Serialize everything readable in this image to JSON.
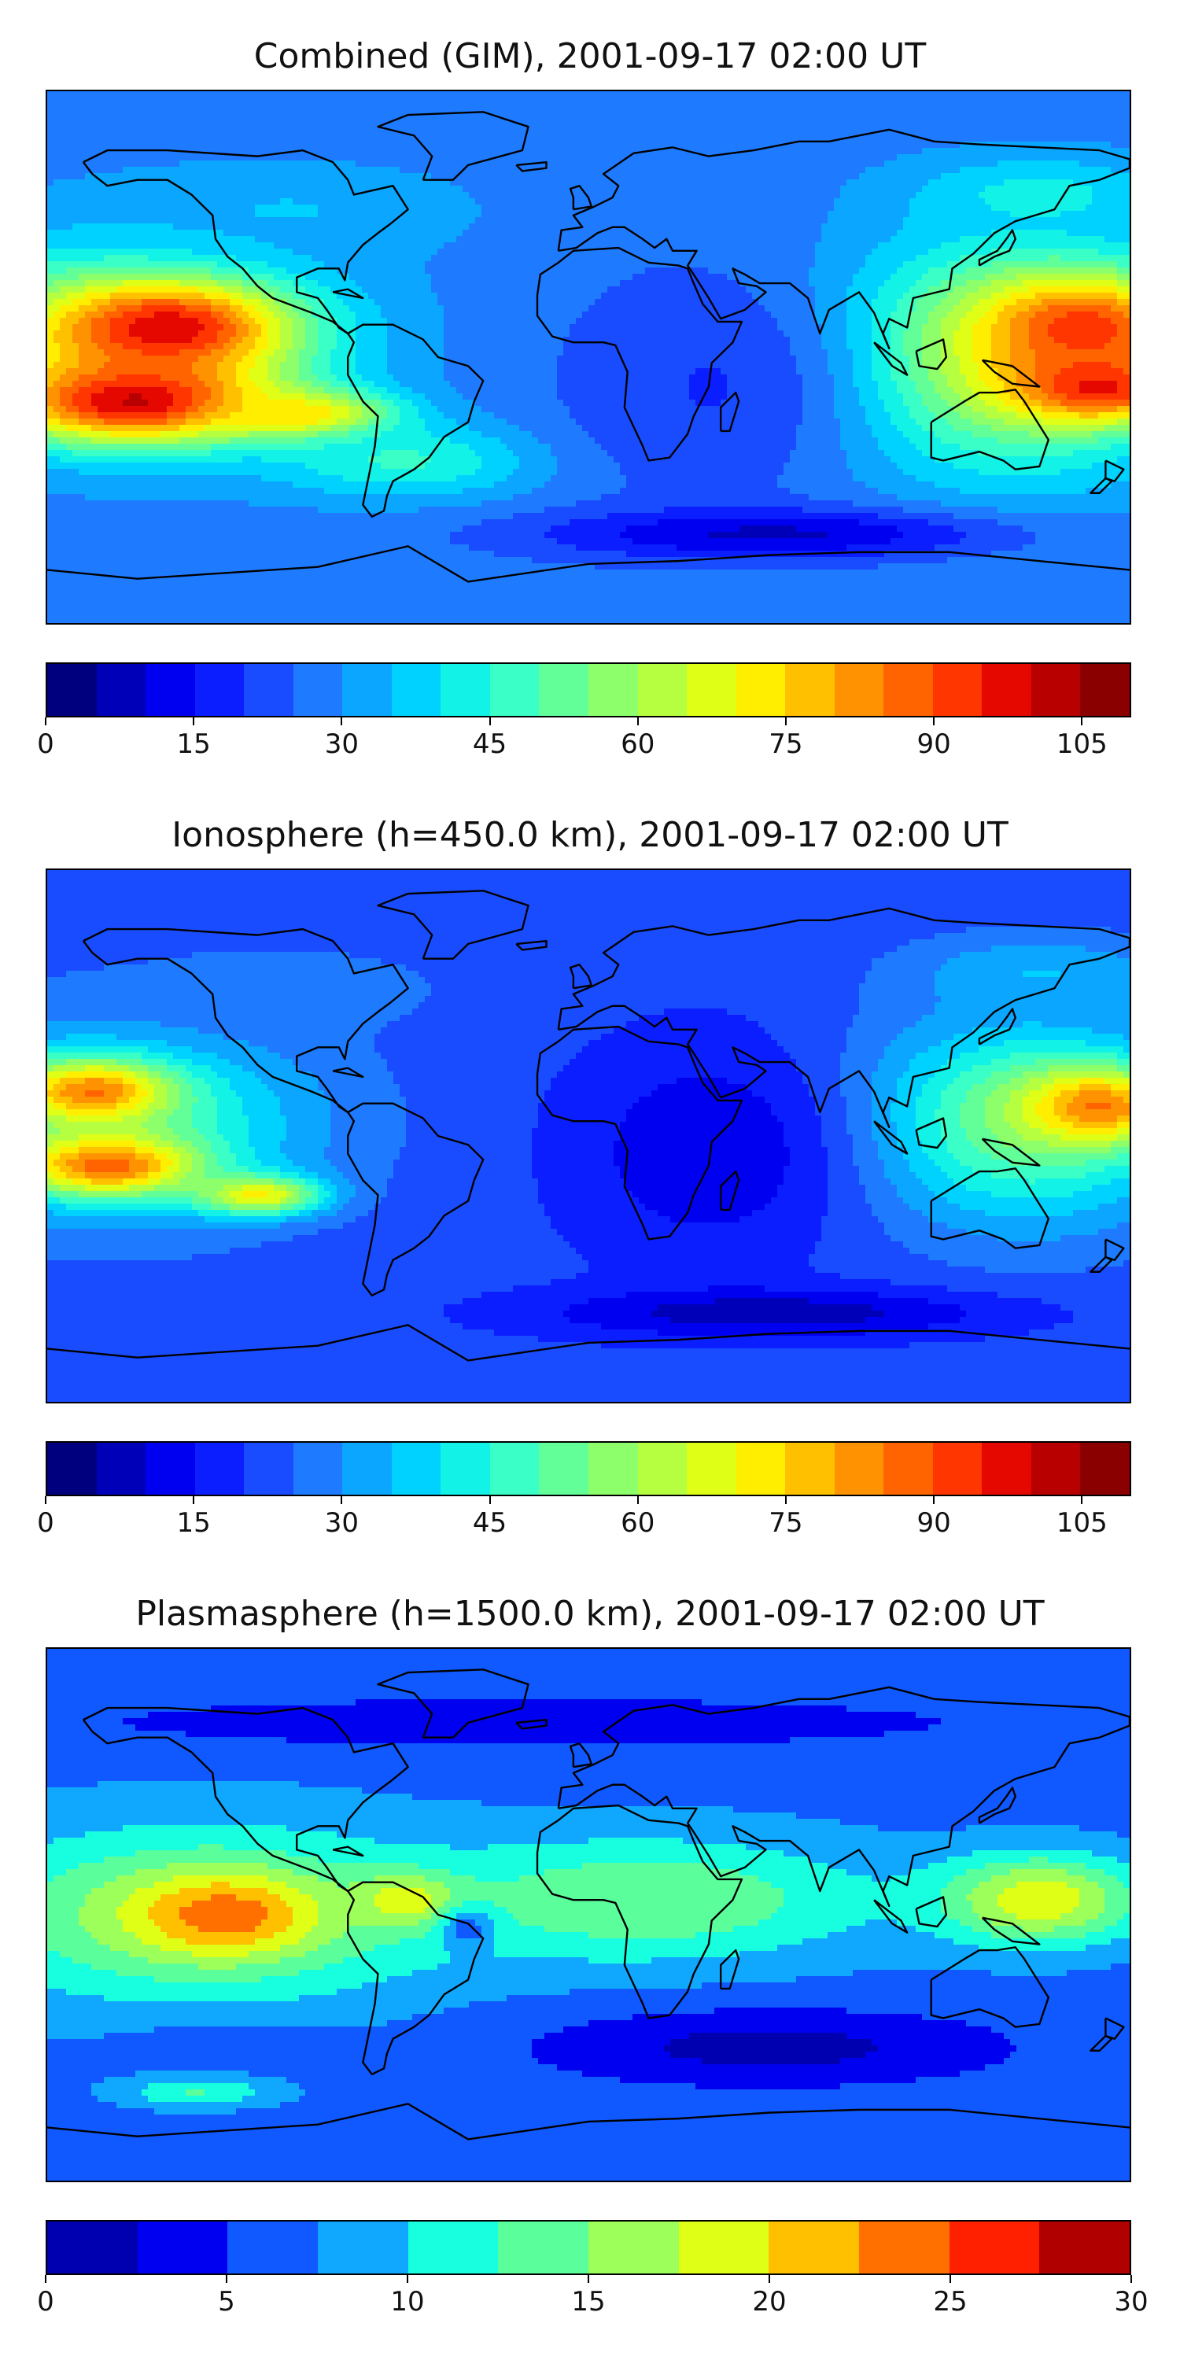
{
  "colors": {
    "steps": [
      "#00007f",
      "#0000b8",
      "#0000f1",
      "#0a1eff",
      "#1a4cff",
      "#1e7bff",
      "#0aa6ff",
      "#00d2ff",
      "#12f2e6",
      "#3affc6",
      "#62ff98",
      "#8cff6a",
      "#b6ff40",
      "#e0ff16",
      "#ffee00",
      "#ffc000",
      "#ff9200",
      "#ff6400",
      "#ff3600",
      "#e40800",
      "#b80000",
      "#8a0000"
    ],
    "steps_plasma": [
      "#0000b0",
      "#0000f0",
      "#1058ff",
      "#10a8ff",
      "#18ffe0",
      "#5aff9c",
      "#9cff5a",
      "#e0ff16",
      "#ffc000",
      "#ff7000",
      "#ff2000",
      "#b00000"
    ],
    "coast": "#000000"
  },
  "panels": [
    {
      "title": "Combined (GIM), 2001-09-17 02:00 UT",
      "scale": {
        "min": 0,
        "max": 110,
        "ticks": [
          "0",
          "15",
          "30",
          "45",
          "60",
          "75",
          "90",
          "105"
        ],
        "tick_values": [
          0,
          15,
          30,
          45,
          60,
          75,
          90,
          105
        ]
      },
      "palette": "steps",
      "blobs": [
        {
          "lon": -160,
          "lat": 5,
          "rx": 85,
          "ry": 38,
          "level": 0.55
        },
        {
          "lon": -140,
          "lat": 10,
          "rx": 45,
          "ry": 18,
          "level": 0.9
        },
        {
          "lon": -150,
          "lat": -15,
          "rx": 50,
          "ry": 16,
          "level": 0.92
        },
        {
          "lon": -95,
          "lat": -20,
          "rx": 35,
          "ry": 10,
          "level": 0.72
        },
        {
          "lon": 140,
          "lat": 0,
          "rx": 70,
          "ry": 45,
          "level": 0.6
        },
        {
          "lon": 165,
          "lat": 10,
          "rx": 40,
          "ry": 20,
          "level": 0.85
        },
        {
          "lon": 170,
          "lat": -10,
          "rx": 35,
          "ry": 14,
          "level": 0.88
        },
        {
          "lon": -60,
          "lat": -35,
          "rx": 55,
          "ry": 15,
          "level": 0.42
        },
        {
          "lon": 40,
          "lat": -10,
          "rx": 60,
          "ry": 50,
          "level": 0.18
        },
        {
          "lon": 60,
          "lat": -60,
          "rx": 90,
          "ry": 10,
          "level": 0.08
        },
        {
          "lon": -100,
          "lat": 50,
          "rx": 70,
          "ry": 18,
          "level": 0.32
        },
        {
          "lon": 150,
          "lat": 55,
          "rx": 50,
          "ry": 15,
          "level": 0.38
        }
      ],
      "base_level": 0.25
    },
    {
      "title": "Ionosphere  (h=450.0 km), 2001-09-17 02:00 UT",
      "scale": {
        "min": 0,
        "max": 110,
        "ticks": [
          "0",
          "15",
          "30",
          "45",
          "60",
          "75",
          "90",
          "105"
        ],
        "tick_values": [
          0,
          15,
          30,
          45,
          60,
          75,
          90,
          105
        ]
      },
      "palette": "steps",
      "blobs": [
        {
          "lon": -160,
          "lat": 5,
          "rx": 80,
          "ry": 38,
          "level": 0.45
        },
        {
          "lon": -165,
          "lat": 15,
          "rx": 30,
          "ry": 12,
          "level": 0.78
        },
        {
          "lon": -160,
          "lat": -10,
          "rx": 35,
          "ry": 12,
          "level": 0.8
        },
        {
          "lon": -110,
          "lat": -20,
          "rx": 25,
          "ry": 8,
          "level": 0.65
        },
        {
          "lon": 145,
          "lat": 5,
          "rx": 65,
          "ry": 40,
          "level": 0.5
        },
        {
          "lon": 170,
          "lat": 10,
          "rx": 30,
          "ry": 15,
          "level": 0.78
        },
        {
          "lon": 40,
          "lat": -5,
          "rx": 55,
          "ry": 45,
          "level": 0.1
        },
        {
          "lon": 60,
          "lat": -60,
          "rx": 90,
          "ry": 10,
          "level": 0.06
        },
        {
          "lon": -100,
          "lat": 50,
          "rx": 70,
          "ry": 18,
          "level": 0.25
        },
        {
          "lon": 150,
          "lat": 55,
          "rx": 50,
          "ry": 15,
          "level": 0.32
        }
      ],
      "base_level": 0.2
    },
    {
      "title": "Plasmasphere (h=1500.0 km), 2001-09-17 02:00 UT",
      "scale": {
        "min": 0,
        "max": 30,
        "ticks": [
          "0",
          "5",
          "10",
          "15",
          "20",
          "25",
          "30"
        ],
        "tick_values": [
          0,
          5,
          10,
          15,
          20,
          25,
          30
        ]
      },
      "palette": "steps_plasma",
      "blobs": [
        {
          "lon": -130,
          "lat": 0,
          "rx": 95,
          "ry": 35,
          "level": 0.55
        },
        {
          "lon": -120,
          "lat": 0,
          "rx": 35,
          "ry": 15,
          "level": 0.82
        },
        {
          "lon": -60,
          "lat": 5,
          "rx": 20,
          "ry": 10,
          "level": 0.72
        },
        {
          "lon": 20,
          "lat": 5,
          "rx": 90,
          "ry": 25,
          "level": 0.5
        },
        {
          "lon": 150,
          "lat": 5,
          "rx": 40,
          "ry": 18,
          "level": 0.65
        },
        {
          "lon": 60,
          "lat": -45,
          "rx": 90,
          "ry": 15,
          "level": 0.05
        },
        {
          "lon": -120,
          "lat": -45,
          "rx": 40,
          "ry": 10,
          "level": 0.2
        },
        {
          "lon": -40,
          "lat": -5,
          "rx": 10,
          "ry": 8,
          "level": 0.2
        },
        {
          "lon": -20,
          "lat": 65,
          "rx": 180,
          "ry": 10,
          "level": 0.1
        },
        {
          "lon": -130,
          "lat": -60,
          "rx": 30,
          "ry": 6,
          "level": 0.42
        }
      ],
      "base_level": 0.22
    }
  ]
}
